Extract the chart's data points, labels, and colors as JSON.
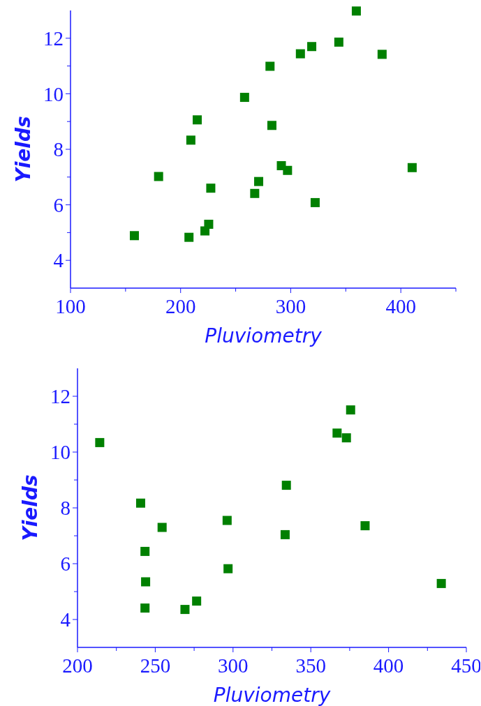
{
  "chart_data": [
    {
      "type": "scatter",
      "xlabel": "Pluviometry",
      "ylabel": "Yields",
      "marker": "square",
      "grid": false,
      "xlim": [
        100,
        450
      ],
      "ylim": [
        3,
        13
      ],
      "xticks": [
        100,
        {
          "value": 150,
          "label": null
        },
        200,
        {
          "value": 250,
          "label": null
        },
        300,
        {
          "value": 350,
          "label": null
        },
        400,
        {
          "value": 450,
          "label": null
        }
      ],
      "yticks": [
        4,
        {
          "value": 5,
          "label": null
        },
        6,
        {
          "value": 7,
          "label": null
        },
        8,
        {
          "value": 9,
          "label": null
        },
        10,
        {
          "value": 11,
          "label": null
        },
        12
      ],
      "series": [
        {
          "color": "#008000",
          "x": [
            158,
            180,
            207.6,
            209.3,
            215.1,
            222.1,
            225.5,
            227.4,
            258.1,
            267.3,
            270.9,
            281.2,
            282.9,
            291.5,
            297.1,
            308.8,
            319.1,
            322.2,
            343.7,
            359.6,
            383,
            410.3
          ],
          "values": [
            4.89,
            7.02,
            4.83,
            8.33,
            9.06,
            5.06,
            5.3,
            6.6,
            9.87,
            6.41,
            6.84,
            10.99,
            8.86,
            7.41,
            7.24,
            11.44,
            11.7,
            6.08,
            11.86,
            12.98,
            11.42,
            7.34
          ]
        }
      ]
    },
    {
      "type": "scatter",
      "xlabel": "Pluviometry",
      "ylabel": "Yields",
      "marker": "square",
      "grid": false,
      "xlim": [
        200,
        450
      ],
      "ylim": [
        3,
        13
      ],
      "xticks": [
        200,
        {
          "value": 225,
          "label": null
        },
        250,
        {
          "value": 275,
          "label": null
        },
        300,
        {
          "value": 325,
          "label": null
        },
        350,
        {
          "value": 375,
          "label": null
        },
        400,
        {
          "value": 425,
          "label": null
        },
        450
      ],
      "yticks": [
        4,
        {
          "value": 5,
          "label": null
        },
        6,
        {
          "value": 7,
          "label": null
        },
        8,
        {
          "value": 9,
          "label": null
        },
        10,
        {
          "value": 11,
          "label": null
        },
        12
      ],
      "series": [
        {
          "color": "#008000",
          "x": [
            214.3,
            240.6,
            243.4,
            243.8,
            243.4,
            254.4,
            269.1,
            276.6,
            296.2,
            296.8,
            333.5,
            334.3,
            366.9,
            372.9,
            375.6,
            384.9,
            433.9
          ],
          "values": [
            10.34,
            8.17,
            6.44,
            5.35,
            4.41,
            7.3,
            4.36,
            4.66,
            7.55,
            5.82,
            7.04,
            8.81,
            10.68,
            10.51,
            11.51,
            7.36,
            5.29
          ]
        }
      ]
    }
  ]
}
